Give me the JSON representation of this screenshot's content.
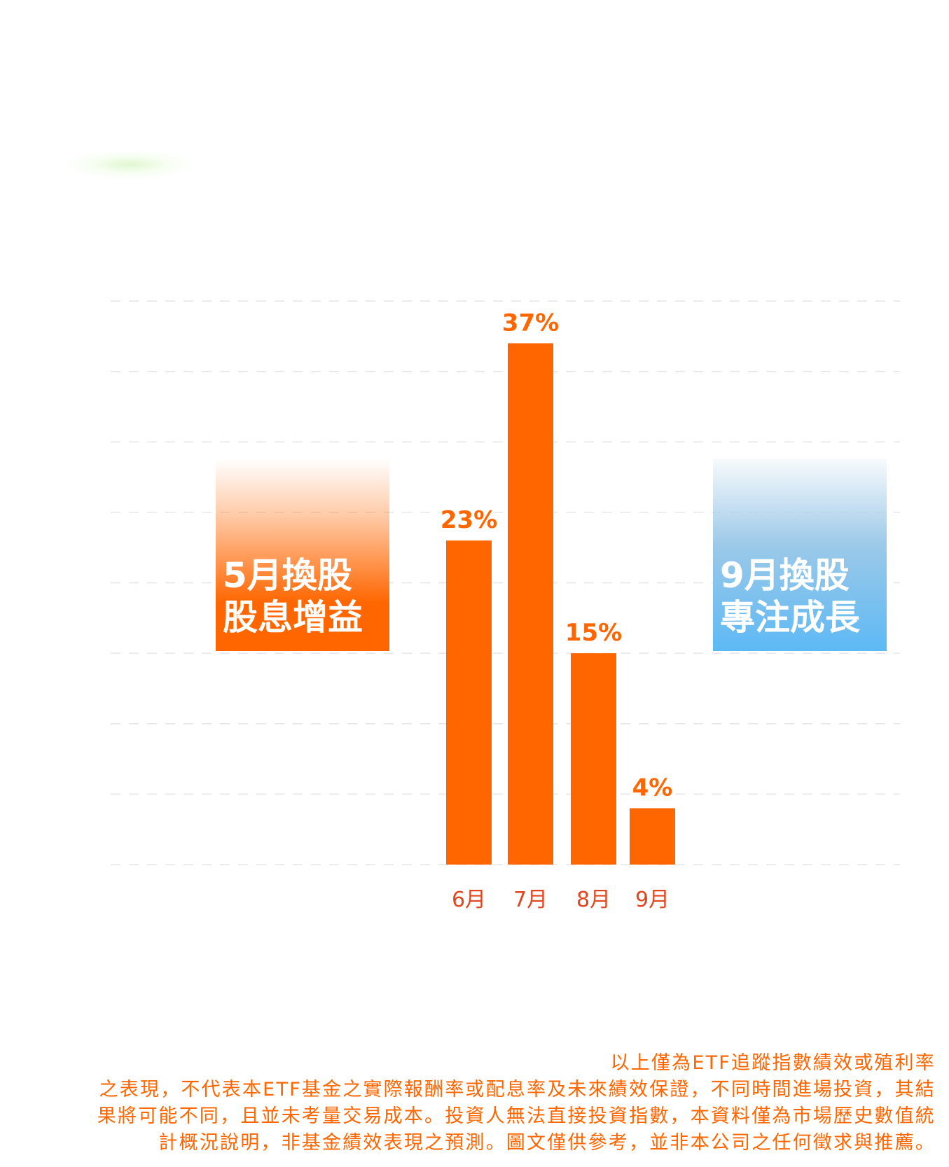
{
  "chart_data": {
    "type": "bar",
    "categories": [
      "6月",
      "7月",
      "8月",
      "9月"
    ],
    "values": [
      23,
      37,
      15,
      4
    ],
    "data_labels": [
      "23%",
      "37%",
      "15%",
      "4%"
    ],
    "ylim": [
      0,
      40
    ],
    "grid": true,
    "title": "",
    "xlabel": "",
    "ylabel": "",
    "bar_color": "#ff6600"
  },
  "badges": {
    "left": {
      "line1": "5月換股",
      "line2": "股息增益",
      "color": "#ff6600"
    },
    "right": {
      "line1": "9月換股",
      "line2": "專注成長",
      "color": "#5db9f5"
    }
  },
  "disclaimer": {
    "lines": [
      "以上僅為ETF追蹤指數績效或殖利率",
      "之表現，不代表本ETF基金之實際報酬率或配息率及未來績效保證，不同時間進場投資，其結",
      "果將可能不同，且並未考量交易成本。投資人無法直接投資指數，本資料僅為市場歷史數值統",
      "計概況說明，非基金績效表現之預測。圖文僅供參考，並非本公司之任何徵求與推薦。"
    ]
  }
}
